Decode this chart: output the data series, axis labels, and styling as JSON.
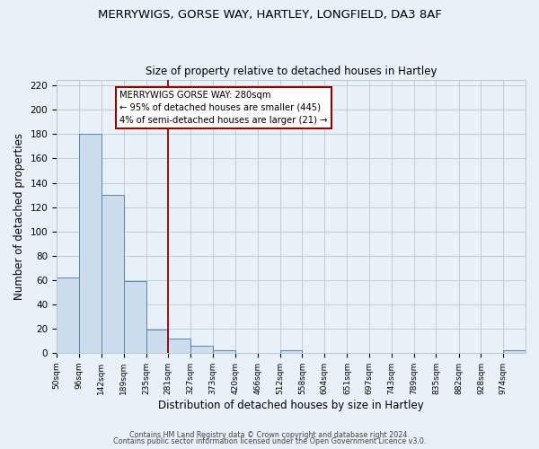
{
  "title1": "MERRYWIGS, GORSE WAY, HARTLEY, LONGFIELD, DA3 8AF",
  "title2": "Size of property relative to detached houses in Hartley",
  "xlabel": "Distribution of detached houses by size in Hartley",
  "ylabel": "Number of detached properties",
  "bin_labels": [
    "50sqm",
    "96sqm",
    "142sqm",
    "189sqm",
    "235sqm",
    "281sqm",
    "327sqm",
    "373sqm",
    "420sqm",
    "466sqm",
    "512sqm",
    "558sqm",
    "604sqm",
    "651sqm",
    "697sqm",
    "743sqm",
    "789sqm",
    "835sqm",
    "882sqm",
    "928sqm",
    "974sqm"
  ],
  "bin_edges": [
    50,
    96,
    142,
    189,
    235,
    281,
    327,
    373,
    420,
    466,
    512,
    558,
    604,
    651,
    697,
    743,
    789,
    835,
    882,
    928,
    974,
    1020
  ],
  "bar_heights": [
    62,
    180,
    130,
    59,
    19,
    12,
    6,
    2,
    0,
    0,
    2,
    0,
    0,
    0,
    0,
    0,
    0,
    0,
    0,
    0,
    2
  ],
  "bar_color": "#ccdded",
  "bar_edge_color": "#5588aa",
  "property_line_x": 281,
  "property_line_color": "#990000",
  "ylim": [
    0,
    225
  ],
  "yticks": [
    0,
    20,
    40,
    60,
    80,
    100,
    120,
    140,
    160,
    180,
    200,
    220
  ],
  "annotation_box_text": "MERRYWIGS GORSE WAY: 280sqm\n← 95% of detached houses are smaller (445)\n4% of semi-detached houses are larger (21) →",
  "footer1": "Contains HM Land Registry data © Crown copyright and database right 2024.",
  "footer2": "Contains public sector information licensed under the Open Government Licence v3.0.",
  "bg_color": "#e8f0f8",
  "plot_bg_color": "#e8f0f8",
  "grid_color": "#b8c8d8",
  "title1_fontsize": 9.5,
  "title2_fontsize": 8.5
}
